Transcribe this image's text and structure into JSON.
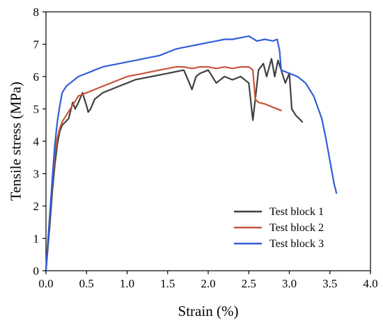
{
  "chart_data": {
    "type": "line",
    "title": "",
    "xlabel": "Strain (%)",
    "ylabel": "Tensile stress (MPa)",
    "xlim": [
      0.0,
      4.0
    ],
    "ylim": [
      0,
      8
    ],
    "x_ticks": [
      "0.0",
      "0.5",
      "1.0",
      "1.5",
      "2.0",
      "2.5",
      "3.0",
      "3.5",
      "4.0"
    ],
    "y_ticks": [
      "0",
      "1",
      "2",
      "3",
      "4",
      "5",
      "6",
      "7",
      "8"
    ],
    "grid": false,
    "legend_position": "bottom-right",
    "series": [
      {
        "name": "Test block 1",
        "color": "#404040",
        "points": [
          [
            0.0,
            0.0
          ],
          [
            0.02,
            0.6
          ],
          [
            0.05,
            1.5
          ],
          [
            0.08,
            2.5
          ],
          [
            0.11,
            3.3
          ],
          [
            0.14,
            3.9
          ],
          [
            0.17,
            4.3
          ],
          [
            0.2,
            4.5
          ],
          [
            0.24,
            4.6
          ],
          [
            0.28,
            4.7
          ],
          [
            0.3,
            4.9
          ],
          [
            0.33,
            5.2
          ],
          [
            0.36,
            5.0
          ],
          [
            0.4,
            5.2
          ],
          [
            0.45,
            5.5
          ],
          [
            0.5,
            5.1
          ],
          [
            0.52,
            4.9
          ],
          [
            0.55,
            5.0
          ],
          [
            0.6,
            5.3
          ],
          [
            0.7,
            5.5
          ],
          [
            0.8,
            5.6
          ],
          [
            0.9,
            5.7
          ],
          [
            1.0,
            5.8
          ],
          [
            1.1,
            5.9
          ],
          [
            1.2,
            5.95
          ],
          [
            1.3,
            6.0
          ],
          [
            1.4,
            6.05
          ],
          [
            1.5,
            6.1
          ],
          [
            1.6,
            6.15
          ],
          [
            1.7,
            6.2
          ],
          [
            1.75,
            5.9
          ],
          [
            1.8,
            5.6
          ],
          [
            1.85,
            6.0
          ],
          [
            1.9,
            6.1
          ],
          [
            2.0,
            6.2
          ],
          [
            2.1,
            5.8
          ],
          [
            2.2,
            6.0
          ],
          [
            2.3,
            5.9
          ],
          [
            2.4,
            6.0
          ],
          [
            2.5,
            5.8
          ],
          [
            2.55,
            4.65
          ],
          [
            2.58,
            5.3
          ],
          [
            2.62,
            6.2
          ],
          [
            2.68,
            6.4
          ],
          [
            2.72,
            6.0
          ],
          [
            2.78,
            6.55
          ],
          [
            2.82,
            6.0
          ],
          [
            2.86,
            6.5
          ],
          [
            2.9,
            6.2
          ],
          [
            2.95,
            5.8
          ],
          [
            3.0,
            6.1
          ],
          [
            3.03,
            5.0
          ],
          [
            3.08,
            4.8
          ],
          [
            3.12,
            4.7
          ],
          [
            3.16,
            4.6
          ]
        ]
      },
      {
        "name": "Test block 2",
        "color": "#c8553d",
        "points": [
          [
            0.0,
            0.0
          ],
          [
            0.02,
            0.8
          ],
          [
            0.05,
            1.8
          ],
          [
            0.08,
            2.8
          ],
          [
            0.11,
            3.6
          ],
          [
            0.14,
            4.1
          ],
          [
            0.17,
            4.4
          ],
          [
            0.2,
            4.6
          ],
          [
            0.25,
            4.8
          ],
          [
            0.3,
            5.0
          ],
          [
            0.35,
            5.2
          ],
          [
            0.4,
            5.4
          ],
          [
            0.5,
            5.5
          ],
          [
            0.6,
            5.6
          ],
          [
            0.7,
            5.7
          ],
          [
            0.8,
            5.8
          ],
          [
            0.9,
            5.9
          ],
          [
            1.0,
            6.0
          ],
          [
            1.1,
            6.05
          ],
          [
            1.2,
            6.1
          ],
          [
            1.3,
            6.15
          ],
          [
            1.4,
            6.2
          ],
          [
            1.5,
            6.25
          ],
          [
            1.6,
            6.3
          ],
          [
            1.7,
            6.3
          ],
          [
            1.8,
            6.25
          ],
          [
            1.9,
            6.3
          ],
          [
            2.0,
            6.3
          ],
          [
            2.1,
            6.25
          ],
          [
            2.2,
            6.3
          ],
          [
            2.3,
            6.25
          ],
          [
            2.4,
            6.3
          ],
          [
            2.5,
            6.3
          ],
          [
            2.55,
            6.2
          ],
          [
            2.58,
            5.3
          ],
          [
            2.62,
            5.2
          ],
          [
            2.7,
            5.15
          ],
          [
            2.8,
            5.05
          ],
          [
            2.9,
            4.95
          ]
        ]
      },
      {
        "name": "Test block 3",
        "color": "#2f5ed8",
        "points": [
          [
            0.0,
            0.0
          ],
          [
            0.02,
            0.7
          ],
          [
            0.05,
            1.8
          ],
          [
            0.08,
            2.9
          ],
          [
            0.11,
            3.9
          ],
          [
            0.14,
            4.6
          ],
          [
            0.17,
            5.1
          ],
          [
            0.2,
            5.5
          ],
          [
            0.25,
            5.7
          ],
          [
            0.3,
            5.8
          ],
          [
            0.4,
            6.0
          ],
          [
            0.5,
            6.1
          ],
          [
            0.6,
            6.2
          ],
          [
            0.7,
            6.3
          ],
          [
            0.8,
            6.35
          ],
          [
            0.9,
            6.4
          ],
          [
            1.0,
            6.45
          ],
          [
            1.1,
            6.5
          ],
          [
            1.2,
            6.55
          ],
          [
            1.3,
            6.6
          ],
          [
            1.4,
            6.65
          ],
          [
            1.5,
            6.75
          ],
          [
            1.6,
            6.85
          ],
          [
            1.7,
            6.9
          ],
          [
            1.8,
            6.95
          ],
          [
            1.9,
            7.0
          ],
          [
            2.0,
            7.05
          ],
          [
            2.1,
            7.1
          ],
          [
            2.2,
            7.15
          ],
          [
            2.3,
            7.15
          ],
          [
            2.4,
            7.2
          ],
          [
            2.5,
            7.25
          ],
          [
            2.6,
            7.1
          ],
          [
            2.7,
            7.15
          ],
          [
            2.8,
            7.1
          ],
          [
            2.85,
            7.15
          ],
          [
            2.88,
            6.8
          ],
          [
            2.9,
            6.2
          ],
          [
            3.0,
            6.1
          ],
          [
            3.1,
            6.0
          ],
          [
            3.2,
            5.8
          ],
          [
            3.3,
            5.4
          ],
          [
            3.4,
            4.7
          ],
          [
            3.45,
            4.1
          ],
          [
            3.5,
            3.4
          ],
          [
            3.55,
            2.7
          ],
          [
            3.58,
            2.4
          ]
        ]
      }
    ]
  }
}
